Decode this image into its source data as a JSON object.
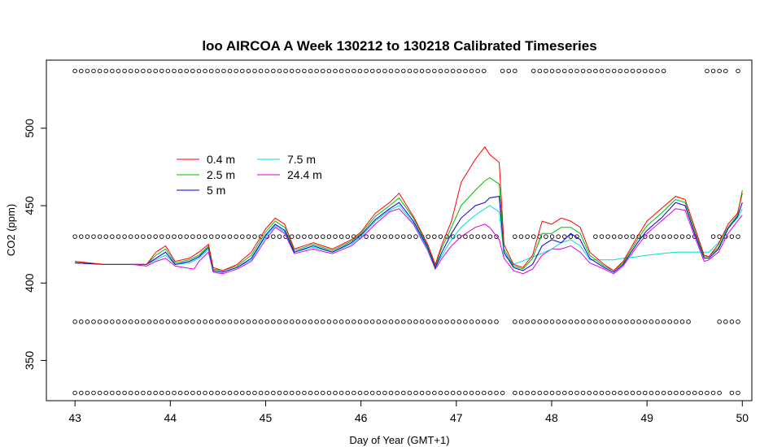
{
  "chart_data": {
    "type": "line",
    "title": "loo AIRCOA A  Week 130212 to 130218  Calibrated Timeseries",
    "xlabel": "Day of Year (GMT+1)",
    "ylabel": "CO2 (ppm)",
    "xlim": [
      42.7,
      50.1
    ],
    "ylim": [
      324,
      544
    ],
    "x_ticks": [
      43,
      44,
      45,
      46,
      47,
      48,
      49,
      50
    ],
    "y_ticks": [
      350,
      400,
      450,
      500
    ],
    "grid": false,
    "legend_position": "upper-left inside plot",
    "series": [
      {
        "name": "0.4 m",
        "color": "#ff0000",
        "x": [
          43.0,
          43.3,
          43.6,
          43.75,
          43.85,
          43.95,
          44.05,
          44.2,
          44.3,
          44.4,
          44.45,
          44.55,
          44.7,
          44.85,
          45.0,
          45.1,
          45.2,
          45.3,
          45.5,
          45.7,
          45.9,
          46.0,
          46.15,
          46.3,
          46.4,
          46.55,
          46.7,
          46.78,
          46.85,
          46.95,
          47.05,
          47.2,
          47.3,
          47.35,
          47.45,
          47.5,
          47.6,
          47.7,
          47.8,
          47.9,
          48.0,
          48.1,
          48.2,
          48.3,
          48.4,
          48.55,
          48.65,
          48.75,
          48.9,
          49.0,
          49.15,
          49.3,
          49.4,
          49.5,
          49.6,
          49.65,
          49.75,
          49.85,
          49.95,
          50.0
        ],
        "values": [
          414,
          412,
          412,
          412,
          420,
          424,
          414,
          416,
          420,
          425,
          410,
          408,
          412,
          420,
          435,
          442,
          438,
          422,
          426,
          422,
          428,
          433,
          445,
          452,
          458,
          443,
          425,
          412,
          425,
          440,
          465,
          480,
          488,
          483,
          478,
          425,
          412,
          410,
          418,
          440,
          438,
          442,
          440,
          436,
          420,
          412,
          408,
          414,
          430,
          440,
          448,
          456,
          454,
          436,
          418,
          417,
          425,
          438,
          445,
          458
        ]
      },
      {
        "name": "2.5 m",
        "color": "#00bb00",
        "x": [
          43.0,
          43.3,
          43.6,
          43.75,
          43.85,
          43.95,
          44.05,
          44.2,
          44.3,
          44.4,
          44.45,
          44.55,
          44.7,
          44.85,
          45.0,
          45.1,
          45.2,
          45.3,
          45.5,
          45.7,
          45.9,
          46.0,
          46.15,
          46.3,
          46.4,
          46.55,
          46.7,
          46.78,
          46.85,
          46.95,
          47.05,
          47.2,
          47.3,
          47.35,
          47.45,
          47.5,
          47.6,
          47.7,
          47.8,
          47.9,
          48.0,
          48.1,
          48.2,
          48.3,
          48.4,
          48.55,
          48.65,
          48.75,
          48.9,
          49.0,
          49.15,
          49.3,
          49.4,
          49.5,
          49.6,
          49.65,
          49.75,
          49.85,
          49.95,
          50.0
        ],
        "values": [
          414,
          412,
          412,
          412,
          418,
          422,
          413,
          415,
          418,
          424,
          409,
          408,
          411,
          418,
          433,
          440,
          436,
          421,
          425,
          421,
          427,
          432,
          443,
          450,
          455,
          442,
          424,
          411,
          423,
          436,
          450,
          460,
          466,
          468,
          464,
          422,
          411,
          409,
          416,
          432,
          432,
          436,
          436,
          432,
          418,
          411,
          408,
          413,
          428,
          437,
          445,
          454,
          452,
          434,
          417,
          417,
          423,
          436,
          444,
          460
        ]
      },
      {
        "name": "5 m",
        "color": "#0000dd",
        "x": [
          43.0,
          43.3,
          43.6,
          43.75,
          43.85,
          43.95,
          44.05,
          44.2,
          44.3,
          44.4,
          44.45,
          44.55,
          44.7,
          44.85,
          45.0,
          45.1,
          45.2,
          45.3,
          45.5,
          45.7,
          45.9,
          46.0,
          46.15,
          46.3,
          46.4,
          46.55,
          46.7,
          46.78,
          46.85,
          46.95,
          47.05,
          47.2,
          47.3,
          47.35,
          47.45,
          47.5,
          47.6,
          47.7,
          47.8,
          47.9,
          48.0,
          48.1,
          48.2,
          48.3,
          48.4,
          48.55,
          48.65,
          48.75,
          48.9,
          49.0,
          49.15,
          49.3,
          49.4,
          49.5,
          49.6,
          49.65,
          49.75,
          49.85,
          49.95,
          50.0
        ],
        "values": [
          413,
          412,
          412,
          412,
          416,
          420,
          412,
          414,
          417,
          423,
          408,
          407,
          410,
          416,
          431,
          438,
          434,
          420,
          424,
          420,
          426,
          431,
          441,
          448,
          452,
          440,
          423,
          410,
          420,
          432,
          442,
          450,
          452,
          455,
          456,
          420,
          410,
          408,
          412,
          424,
          428,
          426,
          432,
          428,
          416,
          410,
          407,
          412,
          426,
          434,
          442,
          452,
          450,
          432,
          416,
          416,
          422,
          435,
          443,
          452
        ]
      },
      {
        "name": "7.5 m",
        "color": "#00dddd",
        "x": [
          43.0,
          43.3,
          43.6,
          43.75,
          43.85,
          43.95,
          44.05,
          44.2,
          44.3,
          44.4,
          44.45,
          44.55,
          44.7,
          44.85,
          45.0,
          45.1,
          45.2,
          45.3,
          45.5,
          45.7,
          45.9,
          46.0,
          46.15,
          46.3,
          46.4,
          46.55,
          46.7,
          46.78,
          46.85,
          46.95,
          47.05,
          47.2,
          47.3,
          47.35,
          47.45,
          47.5,
          47.6,
          47.85,
          48.0,
          48.1,
          48.2,
          48.3,
          48.4,
          48.55,
          48.65,
          48.75,
          48.9,
          49.0,
          49.15,
          49.3,
          49.4,
          49.5,
          49.65,
          49.75,
          49.85,
          49.95,
          50.0
        ],
        "values": [
          413,
          412,
          412,
          412,
          415,
          418,
          412,
          413,
          416,
          422,
          408,
          407,
          410,
          415,
          430,
          437,
          433,
          420,
          423,
          420,
          425,
          430,
          440,
          447,
          450,
          439,
          422,
          410,
          418,
          428,
          436,
          444,
          448,
          450,
          446,
          418,
          412,
          418,
          422,
          426,
          428,
          424,
          415,
          415,
          415,
          416,
          417,
          418,
          419,
          420,
          420,
          420,
          420,
          426,
          436,
          442,
          448
        ]
      },
      {
        "name": "24.4 m",
        "color": "#dd00dd",
        "x": [
          43.0,
          43.3,
          43.6,
          43.75,
          43.85,
          43.95,
          44.05,
          44.15,
          44.25,
          44.3,
          44.4,
          44.45,
          44.55,
          44.7,
          44.85,
          45.0,
          45.1,
          45.2,
          45.3,
          45.5,
          45.7,
          45.9,
          46.0,
          46.15,
          46.3,
          46.4,
          46.55,
          46.7,
          46.78,
          46.85,
          46.95,
          47.05,
          47.2,
          47.3,
          47.35,
          47.45,
          47.5,
          47.6,
          47.7,
          47.8,
          47.9,
          48.0,
          48.1,
          48.2,
          48.3,
          48.4,
          48.55,
          48.65,
          48.75,
          48.9,
          49.0,
          49.15,
          49.3,
          49.4,
          49.5,
          49.6,
          49.65,
          49.75,
          49.85,
          49.95,
          50.0
        ],
        "values": [
          413,
          412,
          412,
          411,
          414,
          416,
          411,
          410,
          409,
          414,
          420,
          407,
          406,
          409,
          414,
          428,
          436,
          432,
          419,
          422,
          419,
          424,
          429,
          438,
          446,
          448,
          438,
          421,
          409,
          416,
          424,
          430,
          436,
          438,
          436,
          428,
          416,
          408,
          406,
          409,
          418,
          422,
          422,
          424,
          420,
          413,
          409,
          406,
          411,
          424,
          432,
          440,
          448,
          447,
          430,
          414,
          415,
          420,
          432,
          440,
          444
        ]
      }
    ],
    "marker_rows": [
      {
        "y": 537,
        "gaps": [
          [
            47.35,
            47.45
          ],
          [
            47.65,
            47.75
          ],
          [
            49.2,
            49.6
          ],
          [
            49.85,
            49.9
          ]
        ]
      },
      {
        "y": 430,
        "gaps": [
          [
            47.45,
            47.6
          ],
          [
            48.3,
            48.4
          ],
          [
            49.55,
            49.65
          ]
        ]
      },
      {
        "y": 375,
        "gaps": [
          [
            47.45,
            47.6
          ],
          [
            49.45,
            49.7
          ]
        ]
      },
      {
        "y": 329,
        "gaps": [
          [
            47.5,
            47.55
          ],
          [
            49.8,
            49.85
          ]
        ]
      }
    ],
    "marker_step": 0.065
  }
}
